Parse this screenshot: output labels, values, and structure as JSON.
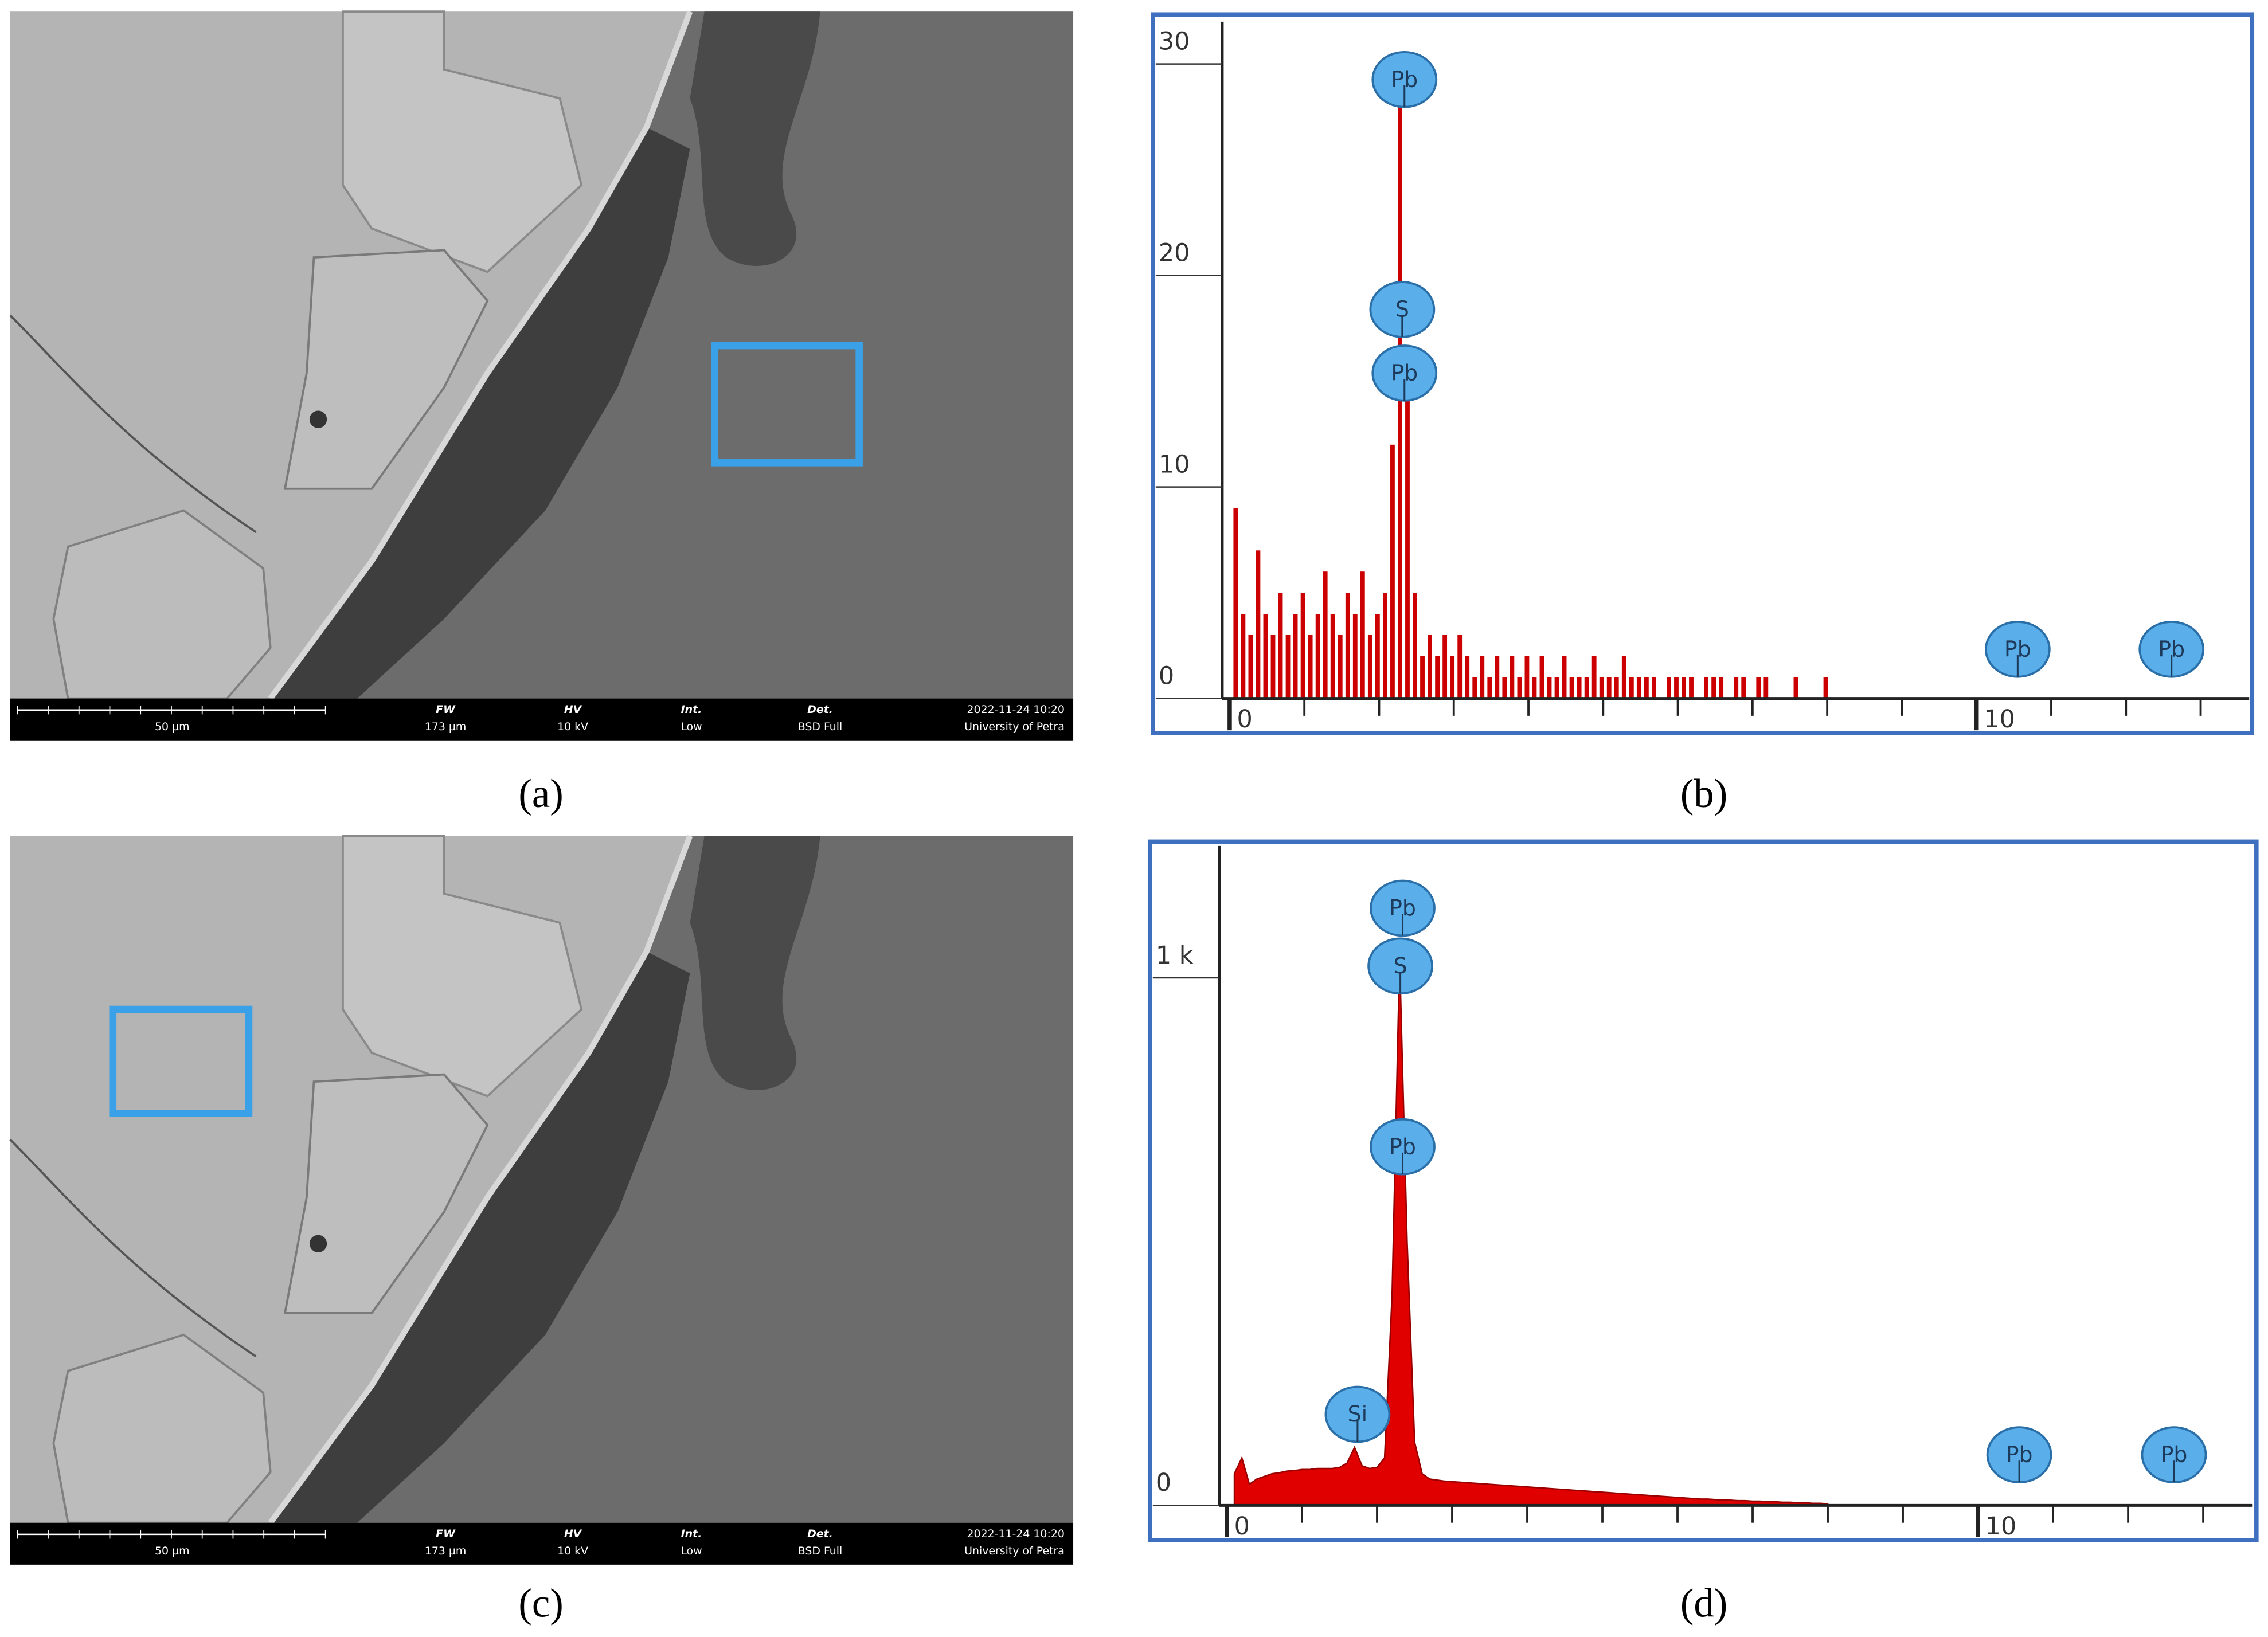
{
  "panels": [
    "(a)",
    "(b)",
    "(c)",
    "(d)"
  ],
  "sem_bar": {
    "scale": "50 µm",
    "fw_label": "FW",
    "fw": "173 µm",
    "hv_label": "HV",
    "hv": "10 kV",
    "int_label": "Int.",
    "int": "Low",
    "det_label": "Det.",
    "det": "BSD Full",
    "date": "2022-11-24 10:20",
    "site": "University of Petra"
  },
  "chart_data": [
    {
      "type": "bar",
      "color": "#cc0000",
      "x": [
        0.1,
        0.2,
        0.3,
        0.4,
        0.5,
        0.6,
        0.7,
        0.8,
        0.9,
        1.0,
        1.1,
        1.2,
        1.3,
        1.4,
        1.5,
        1.6,
        1.7,
        1.8,
        1.9,
        2.0,
        2.1,
        2.2,
        2.3,
        2.4,
        2.5,
        2.6,
        2.7,
        2.8,
        2.9,
        3.0,
        3.1,
        3.2,
        3.3,
        3.4,
        3.5,
        3.6,
        3.7,
        3.8,
        3.9,
        4.0,
        4.1,
        4.2,
        4.3,
        4.4,
        4.5,
        4.6,
        4.7,
        4.8,
        4.9,
        5.0,
        5.1,
        5.2,
        5.3,
        5.4,
        5.5,
        5.6,
        5.7,
        5.8,
        5.9,
        6.0,
        6.1,
        6.2,
        6.3,
        6.4,
        6.5,
        6.6,
        6.7,
        6.8,
        6.9,
        7.0,
        7.1,
        7.2,
        7.3,
        7.4,
        7.5,
        7.6,
        7.7,
        7.8,
        7.9,
        8.0
      ],
      "values": [
        9,
        4,
        3,
        7,
        4,
        3,
        5,
        3,
        4,
        5,
        3,
        4,
        6,
        4,
        3,
        5,
        4,
        6,
        3,
        4,
        5,
        12,
        28,
        16,
        5,
        2,
        3,
        2,
        3,
        2,
        3,
        2,
        1,
        2,
        1,
        2,
        1,
        2,
        1,
        2,
        1,
        2,
        1,
        1,
        2,
        1,
        1,
        1,
        2,
        1,
        1,
        1,
        2,
        1,
        1,
        1,
        1,
        0,
        1,
        1,
        1,
        1,
        0,
        1,
        1,
        1,
        0,
        1,
        1,
        0,
        1,
        1,
        0,
        0,
        0,
        1,
        0,
        0,
        0,
        1
      ],
      "xlim": [
        -0.1,
        13.65
      ],
      "xticks": [
        0,
        10
      ],
      "xminor": [
        1,
        2,
        3,
        4,
        5,
        6,
        7,
        8,
        9,
        11,
        12,
        13
      ],
      "ylim": [
        0,
        32
      ],
      "yticks": [
        0,
        10,
        20,
        30
      ],
      "peak_color": "#5aafea",
      "peaks": [
        {
          "label": "Pb",
          "x": 2.34
        },
        {
          "label": "S",
          "x": 2.31
        },
        {
          "label": "Pb",
          "x": 2.34
        },
        {
          "label": "Pb",
          "x": 10.55
        },
        {
          "label": "Pb",
          "x": 12.61
        }
      ]
    },
    {
      "type": "area",
      "color": "#e00000",
      "x": [
        0.1,
        0.2,
        0.3,
        0.4,
        0.5,
        0.6,
        0.7,
        0.8,
        0.9,
        1.0,
        1.1,
        1.2,
        1.3,
        1.4,
        1.5,
        1.6,
        1.7,
        1.8,
        1.9,
        2.0,
        2.1,
        2.2,
        2.3,
        2.4,
        2.5,
        2.6,
        2.7,
        2.8,
        2.9,
        3.0,
        3.1,
        3.2,
        3.3,
        3.4,
        3.5,
        3.6,
        3.7,
        3.8,
        3.9,
        4.0,
        4.1,
        4.2,
        4.3,
        4.4,
        4.5,
        4.6,
        4.7,
        4.8,
        4.9,
        5.0,
        5.1,
        5.2,
        5.3,
        5.4,
        5.5,
        5.6,
        5.7,
        5.8,
        5.9,
        6.0,
        6.1,
        6.2,
        6.3,
        6.4,
        6.5,
        6.6,
        6.7,
        6.8,
        6.9,
        7.0,
        7.1,
        7.2,
        7.3,
        7.4,
        7.5,
        7.6,
        7.7,
        7.8,
        7.9,
        8.0
      ],
      "values": [
        60,
        90,
        40,
        50,
        55,
        60,
        62,
        65,
        66,
        68,
        68,
        70,
        70,
        70,
        72,
        80,
        110,
        75,
        70,
        72,
        90,
        400,
        1040,
        500,
        120,
        60,
        50,
        48,
        46,
        45,
        44,
        43,
        42,
        41,
        40,
        39,
        38,
        37,
        36,
        35,
        34,
        33,
        32,
        31,
        30,
        29,
        28,
        27,
        26,
        25,
        24,
        23,
        22,
        21,
        20,
        19,
        18,
        17,
        16,
        15,
        14,
        13,
        12,
        12,
        11,
        10,
        10,
        9,
        9,
        8,
        8,
        7,
        7,
        6,
        6,
        5,
        5,
        4,
        4,
        3
      ],
      "xlim": [
        -0.1,
        13.65
      ],
      "xticks": [
        0,
        10
      ],
      "xminor": [
        1,
        2,
        3,
        4,
        5,
        6,
        7,
        8,
        9,
        11,
        12,
        13
      ],
      "ylim": [
        0,
        1250
      ],
      "yticks": [
        0,
        {
          "value": 1000,
          "label": "1 k"
        }
      ],
      "peak_color": "#5aafea",
      "peaks": [
        {
          "label": "Pb",
          "x": 2.34
        },
        {
          "label": "S",
          "x": 2.31
        },
        {
          "label": "Pb",
          "x": 2.34
        },
        {
          "label": "Si",
          "x": 1.74
        },
        {
          "label": "Pb",
          "x": 10.55
        },
        {
          "label": "Pb",
          "x": 12.61
        }
      ]
    }
  ]
}
